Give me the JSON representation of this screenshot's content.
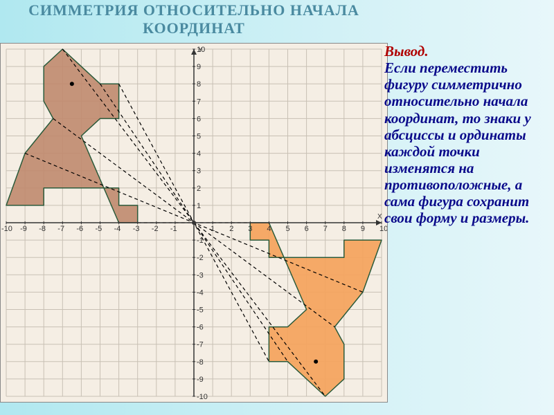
{
  "title": "СИММЕТРИЯ ОТНОСИТЕЛЬНО НАЧАЛА КООРДИНАТ",
  "sidebar": {
    "lead": "Вывод.",
    "body": "Если переместить фигуру симметрично относительно начала координат, то знаки у абсциссы и ординаты каждой точки изменятся на противоположные, а сама фигура сохранит свои форму и размеры."
  },
  "chart": {
    "type": "coordinate-figure",
    "background_color": "#f5eee4",
    "grid_color": "#c8c0b4",
    "axis_color": "#333333",
    "xlim": [
      -10,
      10
    ],
    "ylim": [
      -10,
      10
    ],
    "tick_step": 1,
    "x_axis_label": "X",
    "y_axis_label": "Y",
    "shape1": {
      "fill": "#c08a6e",
      "fill_opacity": 0.9,
      "stroke": "#2a5a3a",
      "stroke_width": 1.5,
      "points": [
        [
          -10,
          1
        ],
        [
          -8,
          1
        ],
        [
          -8,
          2
        ],
        [
          -4,
          2
        ],
        [
          -4,
          1
        ],
        [
          -3,
          1
        ],
        [
          -3,
          0
        ],
        [
          -4,
          0
        ],
        [
          -5,
          2.5
        ],
        [
          -6,
          5
        ],
        [
          -5,
          6
        ],
        [
          -4,
          6
        ],
        [
          -4,
          8
        ],
        [
          -5,
          8
        ],
        [
          -7,
          10
        ],
        [
          -8,
          9
        ],
        [
          -8,
          7
        ],
        [
          -7.5,
          6
        ],
        [
          -9,
          4
        ],
        [
          -10,
          1
        ]
      ]
    },
    "shape2": {
      "fill": "#f4a460",
      "fill_opacity": 0.95,
      "stroke": "#2a5a3a",
      "stroke_width": 1.5,
      "points": [
        [
          10,
          -1
        ],
        [
          8,
          -1
        ],
        [
          8,
          -2
        ],
        [
          4,
          -2
        ],
        [
          4,
          -1
        ],
        [
          3,
          -1
        ],
        [
          3,
          0
        ],
        [
          4,
          0
        ],
        [
          5,
          -2.5
        ],
        [
          6,
          -5
        ],
        [
          5,
          -6
        ],
        [
          4,
          -6
        ],
        [
          4,
          -8
        ],
        [
          5,
          -8
        ],
        [
          7,
          -10
        ],
        [
          8,
          -9
        ],
        [
          8,
          -7
        ],
        [
          7.5,
          -6
        ],
        [
          9,
          -4
        ],
        [
          10,
          -1
        ]
      ]
    },
    "ray_color": "#000000",
    "ray_dash": "5,4",
    "rays": [
      [
        [
          -9,
          4
        ],
        [
          9,
          -4
        ]
      ],
      [
        [
          -7.5,
          6
        ],
        [
          7.5,
          -6
        ]
      ],
      [
        [
          -7,
          10
        ],
        [
          7,
          -10
        ]
      ],
      [
        [
          -5,
          8
        ],
        [
          5,
          -8
        ]
      ],
      [
        [
          -4,
          8
        ],
        [
          4,
          -8
        ]
      ],
      [
        [
          -3,
          0
        ],
        [
          3,
          0
        ]
      ]
    ],
    "key_points": [
      [
        -6.5,
        8
      ],
      [
        6.5,
        -8
      ]
    ],
    "point_color": "#000000",
    "point_radius": 3
  }
}
